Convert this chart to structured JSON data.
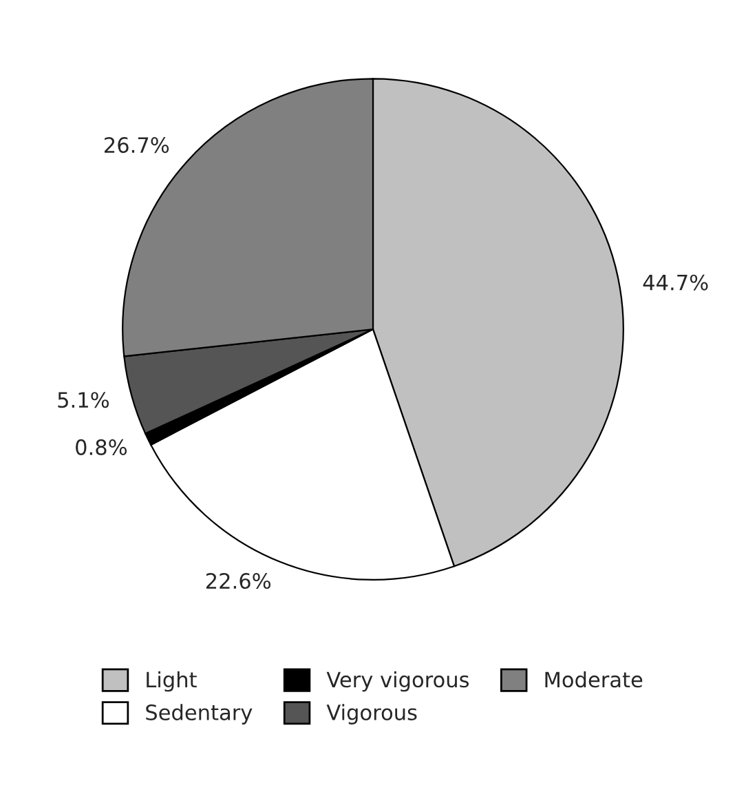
{
  "chart_data": {
    "type": "pie",
    "categories": [
      "Light",
      "Sedentary",
      "Very vigorous",
      "Vigorous",
      "Moderate"
    ],
    "values": [
      44.7,
      22.6,
      0.8,
      5.1,
      26.7
    ],
    "colors": [
      "#c0c0c0",
      "#ffffff",
      "#000000",
      "#555555",
      "#808080"
    ],
    "value_labels": [
      "44.7%",
      "22.6%",
      "0.8%",
      "5.1%",
      "26.7%"
    ],
    "legend": "bottom"
  }
}
